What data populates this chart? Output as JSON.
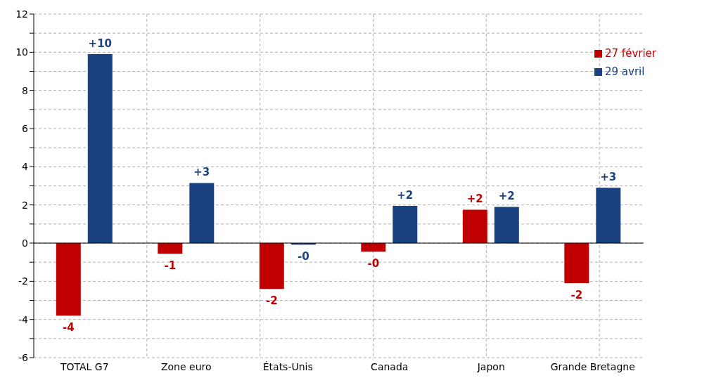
{
  "chart_data": {
    "type": "bar",
    "categories": [
      "TOTAL G7",
      "Zone euro",
      "États-Unis",
      "Canada",
      "Japon",
      "Grande Bretagne"
    ],
    "series": [
      {
        "name": "27 février",
        "color": "#c00000",
        "values": [
          -3.8,
          -0.55,
          -2.4,
          -0.45,
          1.75,
          -2.1
        ],
        "value_labels": [
          "-4",
          "-1",
          "-2",
          "-0",
          "+2",
          "-2"
        ]
      },
      {
        "name": "29 avril",
        "color": "#1a4282",
        "values": [
          9.9,
          3.15,
          -0.08,
          1.95,
          1.9,
          2.9
        ],
        "value_labels": [
          "+10",
          "+3",
          "-0",
          "+2",
          "+2",
          "+3"
        ]
      }
    ],
    "ylim": [
      -6,
      12
    ],
    "yticks": [
      -6,
      {
        "value": -5,
        "label": null
      },
      -4,
      {
        "value": -3,
        "label": null
      },
      -2,
      {
        "value": -1,
        "label": null
      },
      0,
      {
        "value": 1,
        "label": null
      },
      2,
      {
        "value": 3,
        "label": null
      },
      4,
      {
        "value": 5,
        "label": null
      },
      6,
      {
        "value": 7,
        "label": null
      },
      8,
      {
        "value": 9,
        "label": null
      },
      10,
      {
        "value": 11,
        "label": null
      },
      12
    ],
    "grid": true,
    "legend": "top right"
  }
}
